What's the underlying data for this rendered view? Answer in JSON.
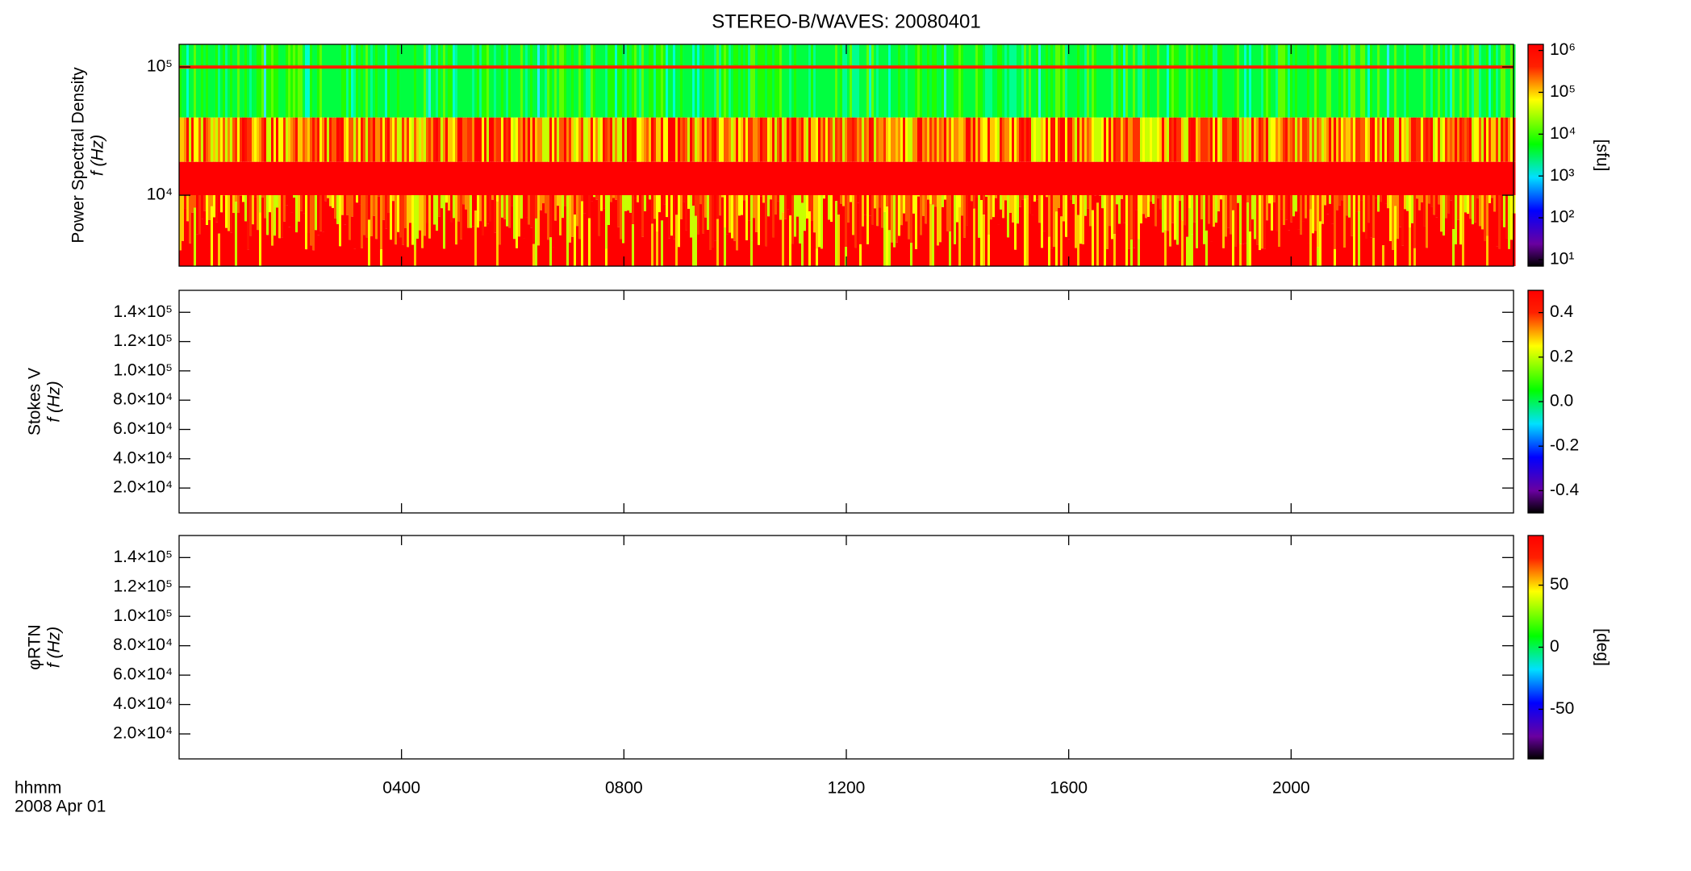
{
  "title": "STEREO-B/WAVES: 20080401",
  "time_unit_label": "hhmm",
  "date_label": "2008 Apr 01",
  "chart_data": [
    {
      "type": "spectrogram",
      "ylabel": [
        "Power Spectral Density",
        "f (Hz)"
      ],
      "ylog": true,
      "xlim": [
        0,
        24
      ],
      "xticks": [
        {
          "value": 4,
          "label": "0400"
        },
        {
          "value": 8,
          "label": "0800"
        },
        {
          "value": 12,
          "label": "1200"
        },
        {
          "value": 16,
          "label": "1600"
        },
        {
          "value": 20,
          "label": "2000"
        }
      ],
      "ylim": [
        2800,
        150000
      ],
      "yticks": [
        {
          "value": 10000,
          "label": "10⁴"
        },
        {
          "value": 100000,
          "label": "10⁵"
        }
      ],
      "colorbar": {
        "log": true,
        "lim": [
          7,
          1400000
        ],
        "ticks": [
          {
            "value": 10,
            "label": "10¹"
          },
          {
            "value": 100,
            "label": "10²"
          },
          {
            "value": 1000,
            "label": "10³"
          },
          {
            "value": 10000,
            "label": "10⁴"
          },
          {
            "value": 100000,
            "label": "10⁵"
          },
          {
            "value": 1000000,
            "label": "10⁶"
          }
        ],
        "label": "[sfu]"
      },
      "filled": true
    },
    {
      "type": "spectrogram",
      "ylabel": [
        "Stokes V",
        "f (Hz)"
      ],
      "ylog": false,
      "xlim": [
        0,
        24
      ],
      "xticks": [
        {
          "value": 4,
          "label": "0400"
        },
        {
          "value": 8,
          "label": "0800"
        },
        {
          "value": 12,
          "label": "1200"
        },
        {
          "value": 16,
          "label": "1600"
        },
        {
          "value": 20,
          "label": "2000"
        }
      ],
      "ylim": [
        3000,
        155000
      ],
      "yticks": [
        {
          "value": 20000,
          "label": "2.0×10⁴"
        },
        {
          "value": 40000,
          "label": "4.0×10⁴"
        },
        {
          "value": 60000,
          "label": "6.0×10⁴"
        },
        {
          "value": 80000,
          "label": "8.0×10⁴"
        },
        {
          "value": 100000,
          "label": "1.0×10⁵"
        },
        {
          "value": 120000,
          "label": "1.2×10⁵"
        },
        {
          "value": 140000,
          "label": "1.4×10⁵"
        }
      ],
      "colorbar": {
        "log": false,
        "lim": [
          -0.5,
          0.5
        ],
        "ticks": [
          -0.4,
          -0.2,
          {
            "value": 0,
            "label": "0.0"
          },
          0.2,
          0.4
        ]
      },
      "filled": false
    },
    {
      "type": "spectrogram",
      "ylabel": [
        "φRTN",
        "f (Hz)"
      ],
      "ylog": false,
      "xlim": [
        0,
        24
      ],
      "xticks": [
        {
          "value": 4,
          "label": "0400"
        },
        {
          "value": 8,
          "label": "0800"
        },
        {
          "value": 12,
          "label": "1200"
        },
        {
          "value": 16,
          "label": "1600"
        },
        {
          "value": 20,
          "label": "2000"
        }
      ],
      "ylim": [
        3000,
        155000
      ],
      "yticks": [
        {
          "value": 20000,
          "label": "2.0×10⁴"
        },
        {
          "value": 40000,
          "label": "4.0×10⁴"
        },
        {
          "value": 60000,
          "label": "6.0×10⁴"
        },
        {
          "value": 80000,
          "label": "8.0×10⁴"
        },
        {
          "value": 100000,
          "label": "1.0×10⁵"
        },
        {
          "value": 120000,
          "label": "1.2×10⁵"
        },
        {
          "value": 140000,
          "label": "1.4×10⁵"
        }
      ],
      "colorbar": {
        "log": false,
        "lim": [
          -90,
          90
        ],
        "ticks": [
          -50,
          0,
          50
        ],
        "label": "[deg]"
      },
      "filled": false
    }
  ]
}
